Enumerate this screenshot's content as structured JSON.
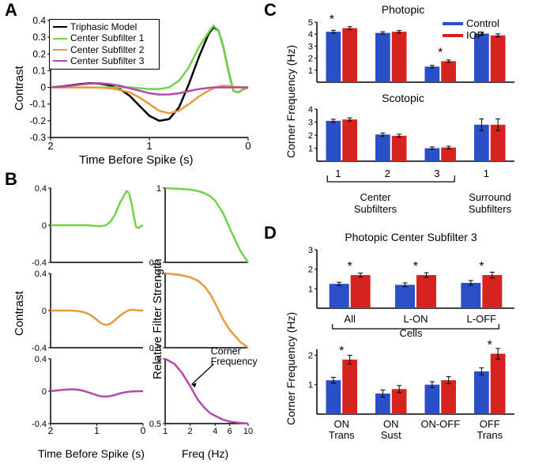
{
  "colors": {
    "bg": "#ffffff",
    "axis": "#000000",
    "text": "#000000",
    "triphasic": "#000000",
    "sub1": "#70d44b",
    "sub2": "#e89a3c",
    "sub3": "#b74aa8",
    "control": "#2b4fc7",
    "iop": "#d6231f"
  },
  "typography": {
    "panel_label_fontsize": 22,
    "axis_label_fontsize": 15,
    "tick_fontsize": 12,
    "title_fontsize": 14,
    "legend_fontsize": 12,
    "line_width": 2.5,
    "bar_line_width": 1
  },
  "panelA": {
    "label": "A",
    "x_label": "Time Before Spike (s)",
    "y_label": "Contrast",
    "xlim": [
      2,
      0
    ],
    "ylim": [
      -0.3,
      0.4
    ],
    "xticks": [
      2,
      1,
      0
    ],
    "yticks": [
      -0.3,
      -0.2,
      -0.1,
      0,
      0.1,
      0.2,
      0.3,
      0.4
    ],
    "yticks_fmt": [
      "-0.3",
      "-0.2",
      "-0.1",
      "0",
      "0.1",
      "0.2",
      "0.3",
      "0.4"
    ],
    "legend": {
      "items": [
        {
          "label": "Triphasic Model",
          "color_key": "triphasic"
        },
        {
          "label": "Center Subfilter 1",
          "color_key": "sub1"
        },
        {
          "label": "Center Subfilter 2",
          "color_key": "sub2"
        },
        {
          "label": "Center Subfilter 3",
          "color_key": "sub3"
        }
      ]
    },
    "series": {
      "time": [
        2.0,
        1.9,
        1.8,
        1.7,
        1.6,
        1.5,
        1.4,
        1.3,
        1.2,
        1.1,
        1.0,
        0.9,
        0.8,
        0.7,
        0.6,
        0.5,
        0.4,
        0.35,
        0.3,
        0.25,
        0.2,
        0.15,
        0.1,
        0.05,
        0.0
      ],
      "triphasic": [
        0,
        0.005,
        0.012,
        0.02,
        0.025,
        0.022,
        0.012,
        -0.01,
        -0.05,
        -0.11,
        -0.17,
        -0.2,
        -0.19,
        -0.12,
        0.02,
        0.18,
        0.32,
        0.36,
        0.34,
        0.24,
        0.1,
        -0.02,
        -0.03,
        -0.012,
        0
      ],
      "sub1": [
        0,
        0,
        0,
        0,
        0,
        0,
        0,
        0,
        0,
        -0.005,
        -0.01,
        -0.01,
        0.0,
        0.04,
        0.12,
        0.24,
        0.33,
        0.37,
        0.34,
        0.24,
        0.1,
        -0.02,
        -0.03,
        -0.012,
        0
      ],
      "sub2": [
        0,
        0,
        0,
        0,
        0,
        -0.002,
        -0.005,
        -0.015,
        -0.03,
        -0.06,
        -0.1,
        -0.14,
        -0.155,
        -0.14,
        -0.1,
        -0.055,
        -0.02,
        -0.005,
        0.005,
        0.01,
        0.008,
        0.004,
        0.002,
        0.001,
        0
      ],
      "sub3": [
        0,
        0.004,
        0.01,
        0.017,
        0.023,
        0.025,
        0.02,
        0.01,
        -0.005,
        -0.02,
        -0.035,
        -0.043,
        -0.042,
        -0.035,
        -0.022,
        -0.01,
        -0.003,
        0,
        0,
        0,
        0,
        0,
        0,
        0,
        0
      ]
    }
  },
  "panelB": {
    "label": "B",
    "x_label_left": "Time Before Spike (s)",
    "x_label_right": "Freq (Hz)",
    "y_label_left": "Contrast",
    "y_label_right": "Relative Filter Strength",
    "corner_text": "Corner\nFrequency",
    "left": {
      "xlim": [
        2,
        0
      ],
      "ylim": [
        -0.4,
        0.4
      ],
      "xticks": [
        2,
        1,
        0
      ],
      "yticks": [
        -0.4,
        0,
        0.4
      ],
      "row1": {
        "time": [
          2.0,
          1.8,
          1.6,
          1.4,
          1.2,
          1.0,
          0.9,
          0.8,
          0.7,
          0.6,
          0.5,
          0.4,
          0.35,
          0.3,
          0.25,
          0.2,
          0.15,
          0.1,
          0.05,
          0
        ],
        "y": [
          0,
          0,
          0,
          0,
          0,
          -0.01,
          -0.01,
          0.0,
          0.04,
          0.12,
          0.24,
          0.33,
          0.37,
          0.34,
          0.24,
          0.1,
          -0.02,
          -0.03,
          -0.012,
          0
        ],
        "color_key": "sub1"
      },
      "row2": {
        "time": [
          2.0,
          1.8,
          1.6,
          1.5,
          1.4,
          1.3,
          1.2,
          1.1,
          1.0,
          0.9,
          0.8,
          0.7,
          0.6,
          0.5,
          0.4,
          0.3,
          0.2,
          0.1,
          0.0
        ],
        "y": [
          0,
          0,
          0,
          -0.002,
          -0.005,
          -0.015,
          -0.03,
          -0.06,
          -0.1,
          -0.14,
          -0.155,
          -0.14,
          -0.1,
          -0.055,
          -0.02,
          0.005,
          0.008,
          0.002,
          0
        ],
        "color_key": "sub2"
      },
      "row3": {
        "time": [
          2.0,
          1.9,
          1.8,
          1.7,
          1.6,
          1.5,
          1.4,
          1.3,
          1.2,
          1.1,
          1.0,
          0.9,
          0.8,
          0.7,
          0.6,
          0.5,
          0.4,
          0.3,
          0.2,
          0.1,
          0.0
        ],
        "y": [
          0,
          0.006,
          0.012,
          0.018,
          0.022,
          0.023,
          0.017,
          0.005,
          -0.012,
          -0.03,
          -0.05,
          -0.063,
          -0.067,
          -0.06,
          -0.045,
          -0.028,
          -0.015,
          -0.006,
          -0.002,
          0,
          0
        ],
        "color_key": "sub3"
      }
    },
    "right": {
      "xlim_log": [
        1,
        10
      ],
      "ylim": [
        0.5,
        1.0
      ],
      "xticks": [
        1,
        2,
        4,
        6,
        10
      ],
      "yticks": [
        0.5,
        1.0
      ],
      "row1": {
        "freq": [
          1,
          1.5,
          2,
          2.5,
          3,
          3.5,
          4,
          5,
          6,
          8,
          10
        ],
        "y": [
          1.0,
          0.995,
          0.99,
          0.98,
          0.965,
          0.945,
          0.915,
          0.83,
          0.73,
          0.58,
          0.5
        ],
        "color_key": "sub1"
      },
      "row2": {
        "freq": [
          1,
          1.5,
          2,
          2.5,
          3,
          3.5,
          4,
          5,
          6,
          8,
          10
        ],
        "y": [
          1.0,
          0.99,
          0.975,
          0.95,
          0.91,
          0.86,
          0.8,
          0.69,
          0.62,
          0.54,
          0.5
        ],
        "color_key": "sub2"
      },
      "row3": {
        "freq": [
          1,
          1.3,
          1.6,
          2,
          2.5,
          3,
          3.5,
          4,
          5,
          6,
          8,
          10
        ],
        "y": [
          1.0,
          0.96,
          0.89,
          0.79,
          0.68,
          0.62,
          0.58,
          0.56,
          0.53,
          0.515,
          0.505,
          0.5
        ],
        "color_key": "sub3",
        "corner_freq": 2.0,
        "corner_y": 0.79
      }
    }
  },
  "panelC": {
    "label": "C",
    "title_top": "Photopic",
    "title_bottom": "Scotopic",
    "y_label": "Corner Frequency (Hz)",
    "legend": [
      {
        "label": "Control",
        "color_key": "control"
      },
      {
        "label": "IOP",
        "color_key": "iop"
      }
    ],
    "xcats": [
      "1",
      "2",
      "3",
      "1"
    ],
    "xgroup_labels": {
      "center": "Center\nSubfilters",
      "surround": "Surround\nSubfilters"
    },
    "photopic": {
      "ylim": [
        0,
        5
      ],
      "yticks": [
        1,
        2,
        3,
        4,
        5
      ],
      "groups": [
        {
          "control": 4.2,
          "iop": 4.5,
          "sig": "left",
          "err_c": 0.12,
          "err_i": 0.12
        },
        {
          "control": 4.1,
          "iop": 4.2,
          "sig": null,
          "err_c": 0.1,
          "err_i": 0.1
        },
        {
          "control": 1.3,
          "iop": 1.75,
          "sig": "center",
          "err_c": 0.1,
          "err_i": 0.1
        },
        {
          "control": 4.05,
          "iop": 3.9,
          "sig": null,
          "err_c": 0.12,
          "err_i": 0.12
        }
      ]
    },
    "scotopic": {
      "ylim": [
        0,
        4
      ],
      "yticks": [
        1,
        2,
        3,
        4
      ],
      "groups": [
        {
          "control": 3.1,
          "iop": 3.2,
          "sig": null,
          "err_c": 0.12,
          "err_i": 0.12
        },
        {
          "control": 2.05,
          "iop": 1.95,
          "sig": null,
          "err_c": 0.12,
          "err_i": 0.12
        },
        {
          "control": 1.0,
          "iop": 1.05,
          "sig": null,
          "err_c": 0.1,
          "err_i": 0.1
        },
        {
          "control": 2.8,
          "iop": 2.8,
          "sig": null,
          "err_c": 0.45,
          "err_i": 0.45
        }
      ]
    }
  },
  "panelD": {
    "label": "D",
    "title": "Photopic Center Subfilter 3",
    "y_label": "Corner Frequency (Hz)",
    "top": {
      "ylim": [
        0,
        3
      ],
      "yticks": [
        1,
        2,
        3
      ],
      "labels": [
        "All",
        "L-ON",
        "L-OFF"
      ],
      "footer": "Cells",
      "groups": [
        {
          "control": 1.25,
          "iop": 1.7,
          "sig": true,
          "err_c": 0.08,
          "err_i": 0.1
        },
        {
          "control": 1.2,
          "iop": 1.7,
          "sig": true,
          "err_c": 0.1,
          "err_i": 0.12
        },
        {
          "control": 1.3,
          "iop": 1.7,
          "sig": true,
          "err_c": 0.12,
          "err_i": 0.15
        }
      ]
    },
    "bottom": {
      "ylim": [
        0,
        2.2
      ],
      "yticks": [
        1,
        2
      ],
      "labels": [
        "ON\nTrans",
        "ON\nSust",
        "ON-OFF",
        "OFF\nTrans"
      ],
      "groups": [
        {
          "control": 1.15,
          "iop": 1.85,
          "sig": true,
          "err_c": 0.1,
          "err_i": 0.15
        },
        {
          "control": 0.7,
          "iop": 0.85,
          "sig": false,
          "err_c": 0.12,
          "err_i": 0.12
        },
        {
          "control": 1.0,
          "iop": 1.15,
          "sig": false,
          "err_c": 0.1,
          "err_i": 0.12
        },
        {
          "control": 1.45,
          "iop": 2.05,
          "sig": true,
          "err_c": 0.12,
          "err_i": 0.18
        }
      ]
    }
  }
}
